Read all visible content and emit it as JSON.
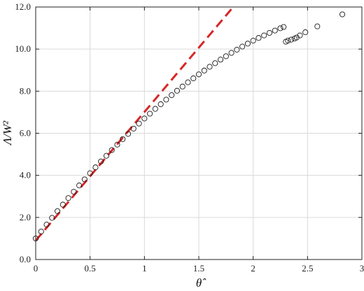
{
  "chart_data": {
    "type": "scatter",
    "xlabel": "θ̂",
    "ylabel": "Λ/W²",
    "xlim": [
      0,
      3
    ],
    "ylim": [
      0,
      12
    ],
    "grid": true,
    "x_ticks": [
      "0",
      "0.5",
      "1",
      "1.5",
      "2",
      "2.5",
      "3"
    ],
    "y_ticks": [
      "0.0",
      "2.0",
      "4.0",
      "6.0",
      "8.0",
      "10.0",
      "12.0"
    ],
    "colors": {
      "points": "#1a1a1a",
      "fit_line": "#d62728"
    },
    "series": [
      {
        "style": "open-circle",
        "x": [
          0.0,
          0.05,
          0.1,
          0.15,
          0.2,
          0.25,
          0.3,
          0.35,
          0.4,
          0.45,
          0.5,
          0.55,
          0.6,
          0.65,
          0.7,
          0.75,
          0.8,
          0.85,
          0.9,
          0.95,
          1.0,
          1.05,
          1.1,
          1.15,
          1.2,
          1.25,
          1.3,
          1.35,
          1.4,
          1.45,
          1.5,
          1.55,
          1.6,
          1.65,
          1.7,
          1.75,
          1.8,
          1.85,
          1.9,
          1.95,
          2.0,
          2.05,
          2.1,
          2.15,
          2.2,
          2.25,
          2.28,
          2.3,
          2.32,
          2.35,
          2.38,
          2.4,
          2.43,
          2.48,
          2.59,
          2.82
        ],
        "y": [
          1.0,
          1.33,
          1.66,
          1.98,
          2.3,
          2.61,
          2.92,
          3.22,
          3.52,
          3.81,
          4.1,
          4.38,
          4.66,
          4.93,
          5.2,
          5.46,
          5.72,
          5.97,
          6.22,
          6.46,
          6.7,
          6.93,
          7.16,
          7.38,
          7.6,
          7.81,
          8.02,
          8.22,
          8.42,
          8.61,
          8.8,
          8.98,
          9.16,
          9.33,
          9.5,
          9.66,
          9.82,
          9.97,
          10.12,
          10.26,
          10.4,
          10.53,
          10.65,
          10.77,
          10.88,
          10.99,
          11.05,
          10.35,
          10.4,
          10.45,
          10.5,
          10.55,
          10.65,
          10.8,
          11.08,
          11.65
        ]
      },
      {
        "style": "dashed-line",
        "x": [
          0,
          1.8
        ],
        "y": [
          0.9,
          11.9
        ]
      }
    ]
  }
}
